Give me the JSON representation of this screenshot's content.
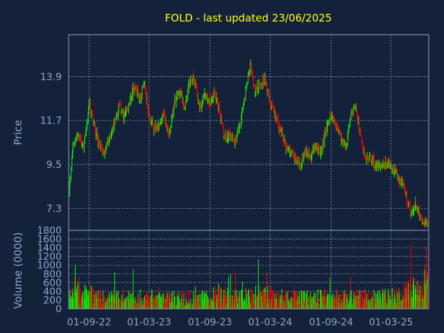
{
  "title": "FOLD - last updated 23/06/2025",
  "colors": {
    "background": "#13213a",
    "up": "#00ff00",
    "down": "#ff0000",
    "title": "#ffff1e",
    "axis_text": "#8fa9c8",
    "grid": "#b8c6d8"
  },
  "chart_data": [
    {
      "type": "line",
      "panel": "price",
      "ylabel": "Price",
      "xlabel": "",
      "yticks": [
        "7.3",
        "9.5",
        "11.7",
        "13.9"
      ],
      "xticks": [
        "01-09-22",
        "01-03-23",
        "01-09-23",
        "01-03-24",
        "01-09-24",
        "01-03-25"
      ],
      "ylim": [
        6.2,
        16.0
      ],
      "xlim": [
        "2022-07-01",
        "2025-06-23"
      ],
      "grid": true,
      "series": [
        {
          "x": [
            "2022-07-01",
            "2022-07-15",
            "2022-08-01",
            "2022-08-15",
            "2022-09-01",
            "2022-09-15",
            "2022-10-01",
            "2022-10-15",
            "2022-11-01",
            "2022-11-15",
            "2022-12-01",
            "2022-12-15",
            "2023-01-01",
            "2023-01-15",
            "2023-02-01",
            "2023-02-15",
            "2023-03-01",
            "2023-03-15",
            "2023-04-01",
            "2023-04-15",
            "2023-05-01",
            "2023-05-15",
            "2023-06-01",
            "2023-06-15",
            "2023-07-01",
            "2023-07-15",
            "2023-08-01",
            "2023-08-15",
            "2023-09-01",
            "2023-09-15",
            "2023-10-01",
            "2023-10-15",
            "2023-11-01",
            "2023-11-15",
            "2023-12-01",
            "2023-12-15",
            "2024-01-01",
            "2024-01-15",
            "2024-02-01",
            "2024-02-15",
            "2024-03-01",
            "2024-03-15",
            "2024-04-01",
            "2024-04-15",
            "2024-05-01",
            "2024-05-15",
            "2024-06-01",
            "2024-06-15",
            "2024-07-01",
            "2024-07-15",
            "2024-08-01",
            "2024-08-15",
            "2024-09-01",
            "2024-09-15",
            "2024-10-01",
            "2024-10-15",
            "2024-11-01",
            "2024-11-15",
            "2024-12-01",
            "2024-12-15",
            "2025-01-01",
            "2025-01-15",
            "2025-02-01",
            "2025-02-15",
            "2025-03-01",
            "2025-03-15",
            "2025-04-01",
            "2025-04-15",
            "2025-05-01",
            "2025-05-15",
            "2025-06-01",
            "2025-06-15",
            "2025-06-23"
          ],
          "values": [
            8.0,
            10.5,
            11.0,
            10.2,
            12.5,
            11.5,
            10.5,
            10.0,
            10.8,
            11.5,
            12.5,
            11.8,
            12.5,
            13.5,
            12.8,
            13.5,
            12.0,
            11.2,
            11.5,
            12.0,
            11.0,
            12.5,
            13.2,
            12.5,
            13.5,
            13.9,
            12.2,
            13.0,
            12.6,
            13.2,
            12.0,
            10.8,
            11.0,
            10.6,
            11.5,
            12.8,
            14.5,
            13.2,
            13.5,
            13.8,
            12.5,
            12.0,
            11.2,
            10.5,
            10.0,
            9.8,
            9.5,
            10.2,
            9.8,
            10.5,
            10.0,
            11.2,
            12.0,
            11.5,
            10.8,
            10.2,
            12.0,
            12.5,
            10.6,
            9.8,
            9.8,
            9.4,
            9.5,
            9.6,
            9.3,
            9.1,
            8.6,
            8.0,
            7.0,
            7.5,
            6.8,
            6.6,
            6.5
          ]
        }
      ]
    },
    {
      "type": "bar",
      "panel": "volume",
      "ylabel": "Volume (0000)",
      "xlabel": "",
      "yticks": [
        "0",
        "200",
        "400",
        "600",
        "800",
        "1000",
        "1200",
        "1400",
        "1600",
        "1800"
      ],
      "ylim": [
        0,
        1800
      ],
      "grid": true,
      "series": [
        {
          "x": [
            "2022-07-01",
            "2022-08-01",
            "2022-09-01",
            "2022-10-01",
            "2022-11-01",
            "2022-12-01",
            "2023-01-01",
            "2023-02-01",
            "2023-03-01",
            "2023-04-01",
            "2023-05-01",
            "2023-06-01",
            "2023-07-01",
            "2023-08-01",
            "2023-09-01",
            "2023-10-01",
            "2023-11-01",
            "2023-12-01",
            "2024-01-01",
            "2024-02-01",
            "2024-03-01",
            "2024-04-01",
            "2024-05-01",
            "2024-06-01",
            "2024-07-01",
            "2024-08-01",
            "2024-09-01",
            "2024-10-01",
            "2024-11-01",
            "2024-12-01",
            "2025-01-01",
            "2025-02-01",
            "2025-03-01",
            "2025-04-01",
            "2025-05-01",
            "2025-06-01",
            "2025-06-23"
          ],
          "values": [
            350,
            420,
            380,
            300,
            260,
            300,
            280,
            320,
            300,
            260,
            280,
            300,
            280,
            260,
            320,
            400,
            300,
            280,
            340,
            420,
            360,
            300,
            280,
            300,
            280,
            320,
            300,
            280,
            300,
            320,
            280,
            300,
            300,
            380,
            520,
            400,
            1600
          ]
        }
      ]
    }
  ]
}
